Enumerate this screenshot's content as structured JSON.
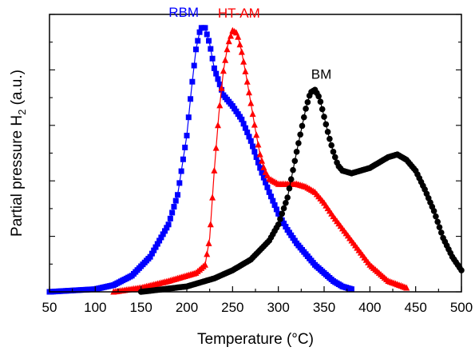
{
  "chart_data": {
    "type": "scatter",
    "xlabel": "Temperature (°C)",
    "ylabel_main": "Partial pressure H",
    "ylabel_sub": "2",
    "ylabel_unit": " (a.u.)",
    "xlim": [
      50,
      500
    ],
    "ylim": [
      0,
      1.03
    ],
    "x_ticks": [
      50,
      100,
      150,
      200,
      250,
      300,
      350,
      400,
      450,
      500
    ],
    "y_tick_labels_shown": false,
    "grid": false,
    "series": [
      {
        "name": "RBM",
        "color": "#0000ff",
        "marker": "square",
        "x": [
          50,
          100,
          120,
          140,
          160,
          180,
          190,
          200,
          205,
          210,
          215,
          220,
          225,
          230,
          240,
          250,
          260,
          270,
          280,
          290,
          300,
          310,
          320,
          330,
          340,
          350,
          360,
          370,
          380
        ],
        "y": [
          0,
          0.01,
          0.025,
          0.06,
          0.13,
          0.25,
          0.36,
          0.58,
          0.75,
          0.9,
          0.98,
          0.98,
          0.92,
          0.83,
          0.73,
          0.69,
          0.64,
          0.56,
          0.46,
          0.37,
          0.29,
          0.23,
          0.18,
          0.14,
          0.1,
          0.07,
          0.04,
          0.02,
          0.01
        ]
      },
      {
        "name": "HT-AM",
        "color": "#ff0000",
        "marker": "triangle",
        "x": [
          120,
          150,
          180,
          200,
          210,
          220,
          225,
          230,
          235,
          240,
          245,
          250,
          255,
          260,
          265,
          270,
          275,
          280,
          285,
          290,
          295,
          300,
          310,
          320,
          330,
          340,
          350,
          360,
          380,
          400,
          420,
          440
        ],
        "y": [
          0,
          0.015,
          0.04,
          0.06,
          0.07,
          0.1,
          0.2,
          0.45,
          0.66,
          0.82,
          0.92,
          0.97,
          0.96,
          0.89,
          0.8,
          0.7,
          0.6,
          0.51,
          0.45,
          0.42,
          0.41,
          0.4,
          0.4,
          0.4,
          0.39,
          0.37,
          0.33,
          0.28,
          0.19,
          0.1,
          0.04,
          0.015
        ]
      },
      {
        "name": "BM",
        "color": "#000000",
        "marker": "circle",
        "x": [
          150,
          200,
          230,
          250,
          270,
          290,
          300,
          310,
          320,
          330,
          335,
          340,
          345,
          350,
          355,
          360,
          365,
          370,
          380,
          390,
          400,
          410,
          420,
          430,
          440,
          450,
          460,
          470,
          480,
          490,
          500
        ],
        "y": [
          0,
          0.02,
          0.05,
          0.08,
          0.12,
          0.19,
          0.25,
          0.35,
          0.52,
          0.68,
          0.74,
          0.75,
          0.72,
          0.65,
          0.58,
          0.52,
          0.47,
          0.45,
          0.44,
          0.45,
          0.46,
          0.48,
          0.5,
          0.51,
          0.49,
          0.45,
          0.38,
          0.3,
          0.2,
          0.13,
          0.08
        ]
      }
    ]
  }
}
